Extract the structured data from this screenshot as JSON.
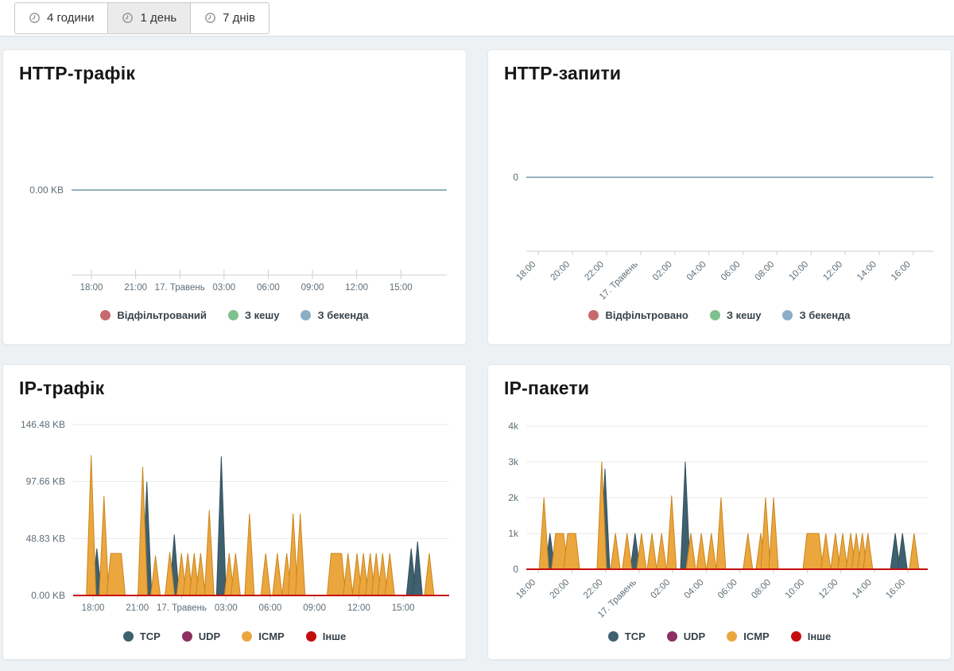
{
  "toolbar": {
    "buttons": [
      {
        "label": "4 години",
        "selected": false
      },
      {
        "label": "1 день",
        "selected": true
      },
      {
        "label": "7 днів",
        "selected": false
      }
    ]
  },
  "colors": {
    "page_background": "#eef1f4",
    "card_background": "#ffffff",
    "axis_line": "#cfcfcf",
    "grid_line": "#e8e8e8",
    "axis_text": "#5f6e78"
  },
  "chart_data": [
    {
      "type": "line",
      "title": "HTTP-трафік",
      "ymax": 1,
      "y_ticks": [
        {
          "label": "0.00 KB",
          "value": 0
        }
      ],
      "x_ticks": [
        "18:00",
        "21:00",
        "17. Травень",
        "03:00",
        "06:00",
        "09:00",
        "12:00",
        "15:00"
      ],
      "series": [
        {
          "name": "Відфільтрований",
          "color": "#c8696f",
          "flatline": true,
          "spikes": []
        },
        {
          "name": "З кешу",
          "color": "#7fc08f",
          "flatline": true,
          "spikes": []
        },
        {
          "name": "З бекенда",
          "color": "#8badc6",
          "flatline": true,
          "spikes": []
        }
      ]
    },
    {
      "type": "line",
      "title": "HTTP-запити",
      "ymax": 1,
      "y_ticks": [
        {
          "label": "0",
          "value": 0
        }
      ],
      "x_ticks": [
        "18:00",
        "20:00",
        "22:00",
        "17. Травень",
        "02:00",
        "04:00",
        "06:00",
        "08:00",
        "10:00",
        "12:00",
        "14:00",
        "16:00"
      ],
      "series": [
        {
          "name": "Відфільтровано",
          "color": "#c8696f",
          "flatline": true,
          "spikes": []
        },
        {
          "name": "З кешу",
          "color": "#7fc08f",
          "flatline": true,
          "spikes": []
        },
        {
          "name": "З бекенда",
          "color": "#8badc6",
          "flatline": true,
          "spikes": []
        }
      ]
    },
    {
      "type": "area",
      "title": "IP-трафік",
      "ymax": 146.48,
      "y_ticks": [
        {
          "label": "146.48 KB",
          "value": 146.48
        },
        {
          "label": "97.66 KB",
          "value": 97.66
        },
        {
          "label": "48.83 KB",
          "value": 48.83
        },
        {
          "label": "0.00 KB",
          "value": 0
        }
      ],
      "x_ticks": [
        "18:00",
        "21:00",
        "17. Травень",
        "03:00",
        "06:00",
        "09:00",
        "12:00",
        "15:00"
      ],
      "series": [
        {
          "name": "TCP",
          "color": "#3f606e",
          "stroke": "#32505d",
          "spikes": [
            [
              0.063,
              40
            ],
            [
              0.196,
              97
            ],
            [
              0.269,
              52
            ],
            [
              0.394,
              119
            ],
            [
              0.899,
              40
            ],
            [
              0.916,
              46
            ]
          ]
        },
        {
          "name": "UDP",
          "color": "#8e2f63",
          "spikes": []
        },
        {
          "name": "ICMP",
          "color": "#eca63e",
          "stroke": "#c9861d",
          "spikes": [
            [
              0.048,
              120
            ],
            [
              0.082,
              85
            ],
            [
              0.1,
              0.128,
              36
            ],
            [
              0.185,
              110
            ],
            [
              0.219,
              34
            ],
            [
              0.257,
              37
            ],
            [
              0.288,
              36
            ],
            [
              0.305,
              36
            ],
            [
              0.322,
              36
            ],
            [
              0.339,
              36
            ],
            [
              0.362,
              73
            ],
            [
              0.415,
              36
            ],
            [
              0.432,
              36
            ],
            [
              0.469,
              70
            ],
            [
              0.512,
              36
            ],
            [
              0.543,
              36
            ],
            [
              0.568,
              36
            ],
            [
              0.585,
              70
            ],
            [
              0.604,
              70
            ],
            [
              0.686,
              0.714,
              36
            ],
            [
              0.731,
              36
            ],
            [
              0.755,
              36
            ],
            [
              0.772,
              36
            ],
            [
              0.79,
              36
            ],
            [
              0.806,
              36
            ],
            [
              0.823,
              36
            ],
            [
              0.842,
              36
            ],
            [
              0.947,
              36
            ]
          ]
        },
        {
          "name": "Інше",
          "color": "#c50d0d",
          "flatline": true,
          "spikes": []
        }
      ]
    },
    {
      "type": "area",
      "title": "IP-пакети",
      "ymax": 4000,
      "y_ticks": [
        {
          "label": "4k",
          "value": 4000
        },
        {
          "label": "3k",
          "value": 3000
        },
        {
          "label": "2k",
          "value": 2000
        },
        {
          "label": "1k",
          "value": 1000
        },
        {
          "label": "0",
          "value": 0
        }
      ],
      "x_ticks": [
        "18:00",
        "20:00",
        "22:00",
        "17. Травень",
        "02:00",
        "04:00",
        "06:00",
        "08:00",
        "10:00",
        "12:00",
        "14:00",
        "16:00"
      ],
      "series": [
        {
          "name": "TCP",
          "color": "#3f606e",
          "stroke": "#32505d",
          "spikes": [
            [
              0.059,
              1000
            ],
            [
              0.196,
              2800
            ],
            [
              0.271,
              1000
            ],
            [
              0.396,
              3000
            ],
            [
              0.919,
              1000
            ],
            [
              0.937,
              1000
            ]
          ]
        },
        {
          "name": "UDP",
          "color": "#8e2f63",
          "spikes": []
        },
        {
          "name": "ICMP",
          "color": "#eca63e",
          "stroke": "#c9861d",
          "spikes": [
            [
              0.044,
              2000
            ],
            [
              0.073,
              0.093,
              1000
            ],
            [
              0.103,
              0.123,
              1000
            ],
            [
              0.188,
              3000
            ],
            [
              0.222,
              1000
            ],
            [
              0.251,
              1000
            ],
            [
              0.287,
              1000
            ],
            [
              0.313,
              1000
            ],
            [
              0.337,
              1000
            ],
            [
              0.362,
              2050
            ],
            [
              0.41,
              1000
            ],
            [
              0.436,
              1000
            ],
            [
              0.461,
              1000
            ],
            [
              0.485,
              2000
            ],
            [
              0.552,
              1000
            ],
            [
              0.584,
              1000
            ],
            [
              0.596,
              2000
            ],
            [
              0.616,
              2000
            ],
            [
              0.699,
              0.729,
              1000
            ],
            [
              0.746,
              1000
            ],
            [
              0.77,
              1000
            ],
            [
              0.788,
              1000
            ],
            [
              0.808,
              1000
            ],
            [
              0.822,
              1000
            ],
            [
              0.837,
              1000
            ],
            [
              0.851,
              1000
            ],
            [
              0.966,
              1000
            ]
          ]
        },
        {
          "name": "Інше",
          "color": "#c50d0d",
          "flatline": true,
          "spikes": []
        }
      ]
    }
  ]
}
